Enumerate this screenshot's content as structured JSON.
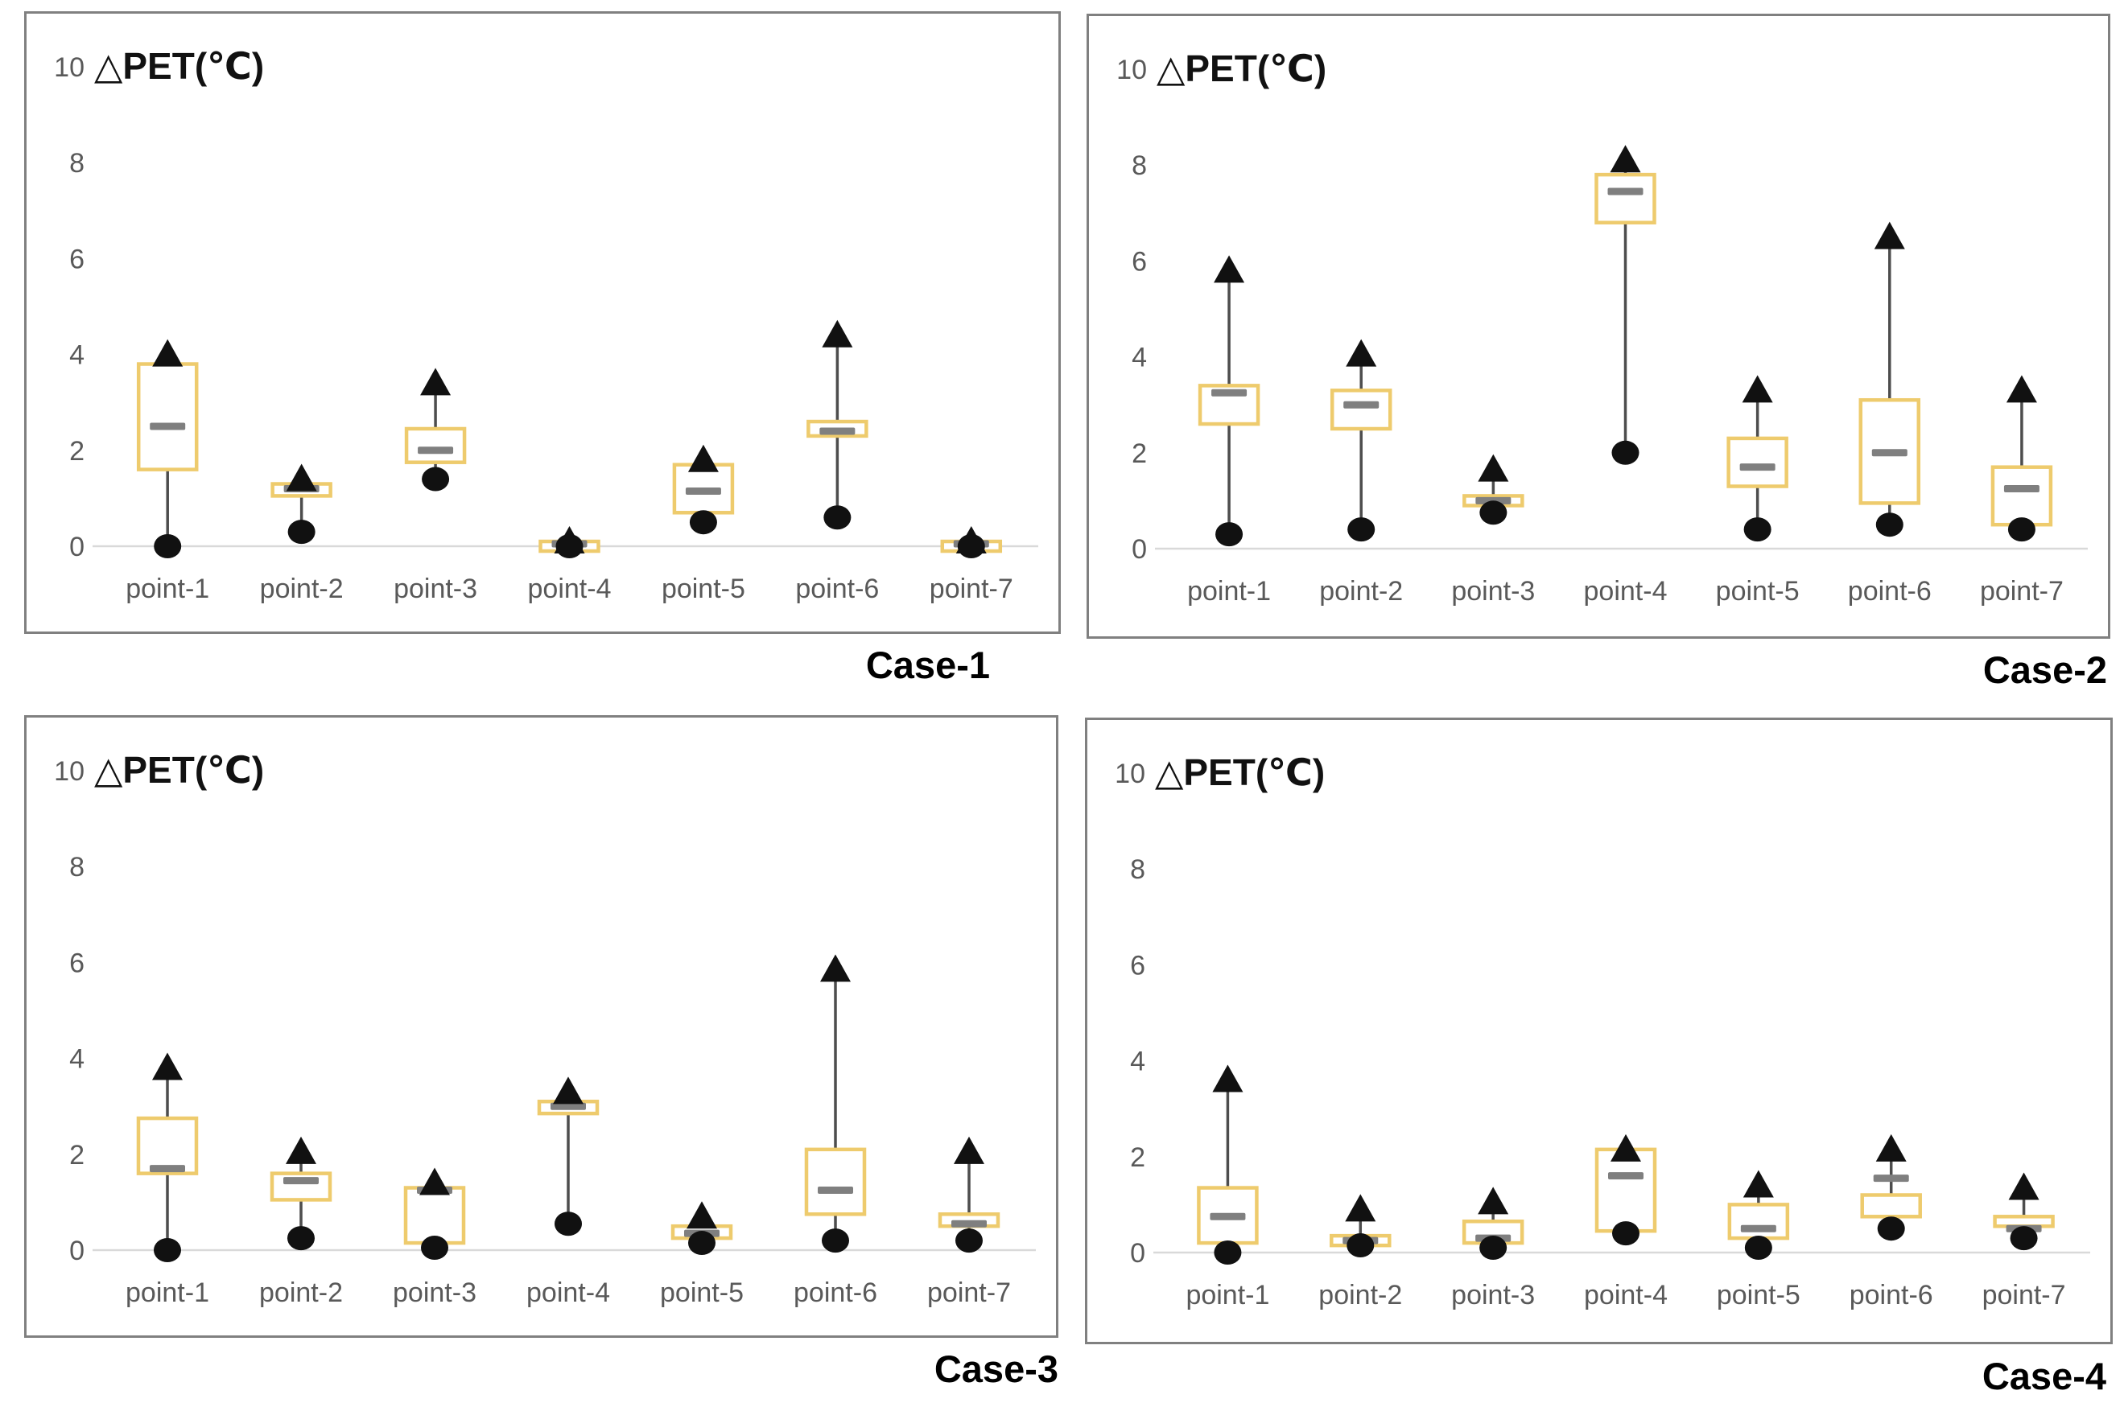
{
  "style": {
    "box_stroke": "#eecb6d",
    "box_fill": "#ffffff",
    "whisker": "#4d4d4d",
    "dash": "#7f7f7f",
    "marker": "#111111",
    "axis_line": "#d9d9d9",
    "tick_text": "#595959",
    "panel_border": "#808080"
  },
  "markers": {
    "max": "triangle-up-icon",
    "min": "circle-icon",
    "median": "dash-icon",
    "range": "box-outline"
  },
  "chart_data": [
    {
      "type": "box",
      "case_label": "Case-1",
      "y_axis_title": "△PET(℃)",
      "y_axis": {
        "ticks": [
          10,
          8,
          6,
          4,
          2,
          0
        ],
        "range": [
          0,
          10
        ],
        "grid": false
      },
      "categories": [
        "point-1",
        "point-2",
        "point-3",
        "point-4",
        "point-5",
        "point-6",
        "point-7"
      ],
      "points": [
        {
          "category": "point-1",
          "min": 0,
          "q1": 1.6,
          "median": 2.5,
          "q3": 3.8,
          "max": 4.0
        },
        {
          "category": "point-2",
          "min": 0.3,
          "q1": 1.05,
          "median": 1.2,
          "q3": 1.3,
          "max": 1.4
        },
        {
          "category": "point-3",
          "min": 1.4,
          "q1": 1.75,
          "median": 2.0,
          "q3": 2.45,
          "max": 3.4
        },
        {
          "category": "point-4",
          "min": 0,
          "q1": 0,
          "median": 0.05,
          "q3": 0.1,
          "max": 0.1
        },
        {
          "category": "point-5",
          "min": 0.5,
          "q1": 0.7,
          "median": 1.15,
          "q3": 1.7,
          "max": 1.8
        },
        {
          "category": "point-6",
          "min": 0.6,
          "q1": 2.3,
          "median": 2.4,
          "q3": 2.6,
          "max": 4.4
        },
        {
          "category": "point-7",
          "min": 0,
          "q1": 0,
          "median": 0.05,
          "q3": 0.1,
          "max": 0.1
        }
      ]
    },
    {
      "type": "box",
      "case_label": "Case-2",
      "y_axis_title": "△PET(℃)",
      "y_axis": {
        "ticks": [
          10,
          8,
          6,
          4,
          2,
          0
        ],
        "range": [
          0,
          10
        ],
        "grid": false
      },
      "categories": [
        "point-1",
        "point-2",
        "point-3",
        "point-4",
        "point-5",
        "point-6",
        "point-7"
      ],
      "points": [
        {
          "category": "point-1",
          "min": 0.3,
          "q1": 2.6,
          "median": 3.25,
          "q3": 3.4,
          "max": 5.8
        },
        {
          "category": "point-2",
          "min": 0.4,
          "q1": 2.5,
          "median": 3.0,
          "q3": 3.3,
          "max": 4.05
        },
        {
          "category": "point-3",
          "min": 0.75,
          "q1": 0.9,
          "median": 1.0,
          "q3": 1.1,
          "max": 1.65
        },
        {
          "category": "point-4",
          "min": 2.0,
          "q1": 6.8,
          "median": 7.45,
          "q3": 7.8,
          "max": 8.1
        },
        {
          "category": "point-5",
          "min": 0.4,
          "q1": 1.3,
          "median": 1.7,
          "q3": 2.3,
          "max": 3.3
        },
        {
          "category": "point-6",
          "min": 0.5,
          "q1": 0.95,
          "median": 2.0,
          "q3": 3.1,
          "max": 6.5
        },
        {
          "category": "point-7",
          "min": 0.4,
          "q1": 0.5,
          "median": 1.25,
          "q3": 1.7,
          "max": 3.3
        }
      ]
    },
    {
      "type": "box",
      "case_label": "Case-3",
      "y_axis_title": "△PET(℃)",
      "y_axis": {
        "ticks": [
          10,
          8,
          6,
          4,
          2,
          0
        ],
        "range": [
          0,
          10
        ],
        "grid": false
      },
      "categories": [
        "point-1",
        "point-2",
        "point-3",
        "point-4",
        "point-5",
        "point-6",
        "point-7"
      ],
      "points": [
        {
          "category": "point-1",
          "min": 0,
          "q1": 1.6,
          "median": 1.7,
          "q3": 2.75,
          "max": 3.8
        },
        {
          "category": "point-2",
          "min": 0.25,
          "q1": 1.05,
          "median": 1.45,
          "q3": 1.6,
          "max": 2.05
        },
        {
          "category": "point-3",
          "min": 0.05,
          "q1": 0.15,
          "median": 1.25,
          "q3": 1.3,
          "max": 1.4
        },
        {
          "category": "point-4",
          "min": 0.55,
          "q1": 2.85,
          "median": 3.0,
          "q3": 3.1,
          "max": 3.3
        },
        {
          "category": "point-5",
          "min": 0.15,
          "q1": 0.25,
          "median": 0.35,
          "q3": 0.5,
          "max": 0.7
        },
        {
          "category": "point-6",
          "min": 0.2,
          "q1": 0.75,
          "median": 1.25,
          "q3": 2.1,
          "max": 5.85
        },
        {
          "category": "point-7",
          "min": 0.2,
          "q1": 0.5,
          "median": 0.55,
          "q3": 0.75,
          "max": 2.05
        }
      ]
    },
    {
      "type": "box",
      "case_label": "Case-4",
      "y_axis_title": "△PET(℃)",
      "y_axis": {
        "ticks": [
          10,
          8,
          6,
          4,
          2,
          0
        ],
        "range": [
          0,
          10
        ],
        "grid": false
      },
      "categories": [
        "point-1",
        "point-2",
        "point-3",
        "point-4",
        "point-5",
        "point-6",
        "point-7"
      ],
      "points": [
        {
          "category": "point-1",
          "min": 0,
          "q1": 0.2,
          "median": 0.75,
          "q3": 1.35,
          "max": 3.6
        },
        {
          "category": "point-2",
          "min": 0.15,
          "q1": 0.15,
          "median": 0.25,
          "q3": 0.35,
          "max": 0.9
        },
        {
          "category": "point-3",
          "min": 0.1,
          "q1": 0.2,
          "median": 0.3,
          "q3": 0.65,
          "max": 1.05
        },
        {
          "category": "point-4",
          "min": 0.4,
          "q1": 0.45,
          "median": 1.6,
          "q3": 2.15,
          "max": 2.15
        },
        {
          "category": "point-5",
          "min": 0.1,
          "q1": 0.3,
          "median": 0.5,
          "q3": 1.0,
          "max": 1.4
        },
        {
          "category": "point-6",
          "min": 0.5,
          "q1": 0.75,
          "median": 1.55,
          "q3": 1.2,
          "max": 2.15
        },
        {
          "category": "point-7",
          "min": 0.3,
          "q1": 0.55,
          "median": 0.5,
          "q3": 0.75,
          "max": 1.35
        }
      ]
    }
  ]
}
